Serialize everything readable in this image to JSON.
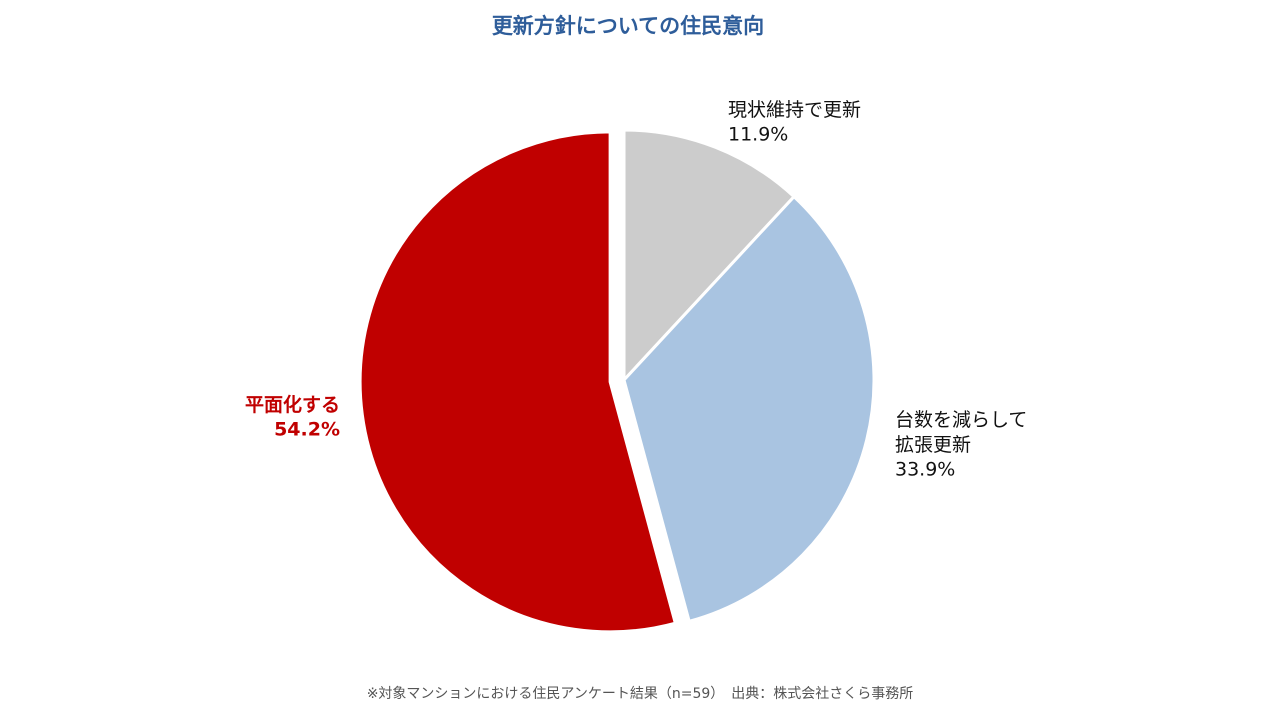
{
  "chart_data": {
    "type": "pie",
    "title": "更新方針についての住民意向",
    "categories": [
      "現状維持で更新",
      "台数を減らして\n拡張更新",
      "平面化する"
    ],
    "values": [
      11.9,
      33.9,
      54.2
    ],
    "value_labels": [
      "11.9%",
      "33.9%",
      "54.2%"
    ],
    "colors": [
      "#cccccc",
      "#a9c4e1",
      "#c00000"
    ],
    "note": "※対象マンションにおける住民アンケート結果（n=59）　出典：株式会社さくら事務所"
  }
}
